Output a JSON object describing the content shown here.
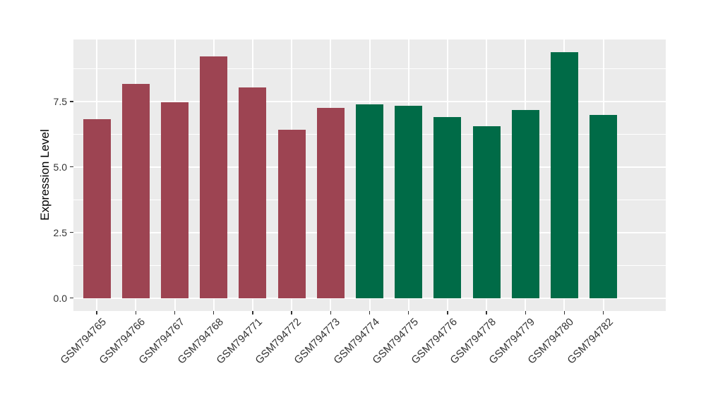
{
  "chart": {
    "background": "#ffffff",
    "panel_background": "#ebebeb",
    "grid_color": "#ffffff",
    "tick_color": "#333333",
    "tick_label_color": "#333333",
    "axis_title_color": "#000000"
  },
  "chart_data": {
    "type": "bar",
    "title": "",
    "xlabel": "",
    "ylabel": "Expression Level",
    "categories": [
      "GSM794765",
      "GSM794766",
      "GSM794767",
      "GSM794768",
      "GSM794771",
      "GSM794772",
      "GSM794773",
      "GSM794774",
      "GSM794775",
      "GSM794776",
      "GSM794778",
      "GSM794779",
      "GSM794780",
      "GSM794782"
    ],
    "values": [
      6.83,
      8.16,
      7.47,
      9.21,
      8.04,
      6.41,
      7.24,
      7.38,
      7.34,
      6.9,
      6.56,
      7.16,
      9.37,
      6.98
    ],
    "bar_colors": [
      "#9d4452",
      "#9d4452",
      "#9d4452",
      "#9d4452",
      "#9d4452",
      "#9d4452",
      "#9d4452",
      "#006b47",
      "#006b47",
      "#006b47",
      "#006b47",
      "#006b47",
      "#006b47",
      "#006b47"
    ],
    "y_ticks": [
      {
        "label": "0.0",
        "value": 0
      },
      {
        "label": "2.5",
        "value": 2.5
      },
      {
        "label": "5.0",
        "value": 5
      },
      {
        "label": "7.5",
        "value": 7.5
      }
    ],
    "y_minor_gridlines": [
      1.25,
      3.75,
      6.25,
      8.75
    ],
    "ylim": [
      -0.494,
      9.86
    ],
    "bar_width_ratio": 0.7,
    "x_tick_angle": 45,
    "grid": "major and minor horizontal, major vertical at category centers",
    "legend": "none"
  }
}
